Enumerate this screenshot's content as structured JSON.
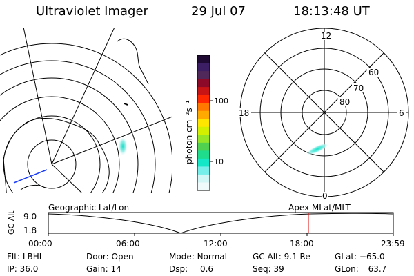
{
  "header": {
    "instrument": "Ultraviolet Imager",
    "date": "29 Jul 07",
    "time": "18:13:48 UT"
  },
  "colorbar": {
    "unit_label": "photon cm⁻²s⁻¹",
    "ticks": [
      "100",
      "10"
    ],
    "colors": [
      "#1e0a32",
      "#3c1e64",
      "#50285a",
      "#8c0a28",
      "#c81414",
      "#ff2800",
      "#ff7800",
      "#ffaa00",
      "#ffe600",
      "#d2f000",
      "#96e628",
      "#50d250",
      "#1edc8c",
      "#14e6c8",
      "#78eeea",
      "#d2f5f5",
      "#f0fafa"
    ]
  },
  "polar_plot": {
    "mlt_labels": {
      "top": "12",
      "left": "18",
      "right": "6",
      "bottom": "0"
    },
    "lat_labels": [
      "60",
      "70",
      "80"
    ]
  },
  "timeline": {
    "left_title": "Geographic Lat/Lon",
    "right_title": "Apex MLat/MLT",
    "y_axis_label": "GC Alt",
    "y_ticks": [
      "9.0",
      "1.8"
    ],
    "x_ticks": [
      "00:00",
      "06:00",
      "12:00",
      "18:00",
      "23:59"
    ],
    "marker_color": "#e00000"
  },
  "info": {
    "row1": [
      {
        "key": "Flt:",
        "value": "LBHL"
      },
      {
        "key": "Door:",
        "value": "Open"
      },
      {
        "key": "Mode:",
        "value": "Normal"
      },
      {
        "key": "GC Alt:",
        "value": "9.1 Re"
      },
      {
        "key": "GLat:",
        "value": "−65.0"
      }
    ],
    "row2": [
      {
        "key": "IP:",
        "value": "36.0"
      },
      {
        "key": "Gain:",
        "value": "14"
      },
      {
        "key": "Dsp:",
        "value": "0.6"
      },
      {
        "key": "Seq:",
        "value": "39"
      },
      {
        "key": "GLon:",
        "value": "63.7"
      }
    ]
  }
}
